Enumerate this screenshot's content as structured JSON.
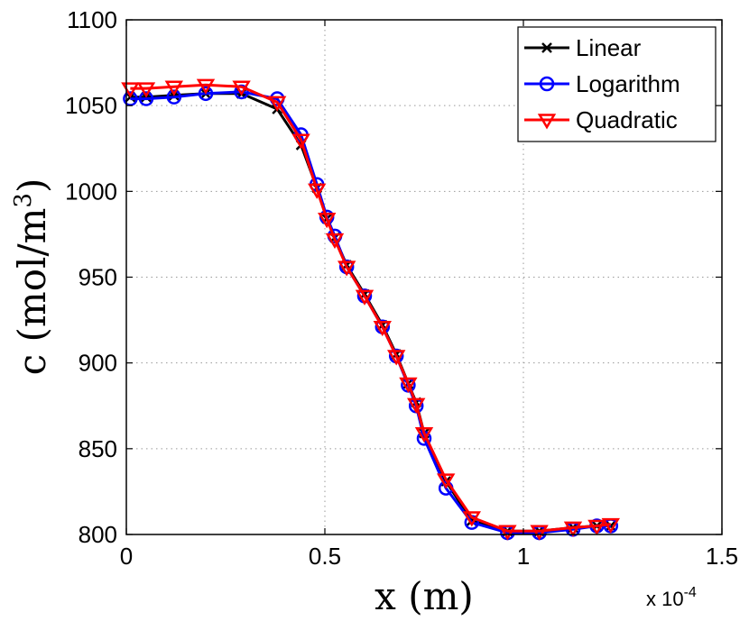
{
  "chart_data": {
    "type": "line",
    "title": "",
    "xlabel": "x (m)",
    "ylabel_prefix": "c (mol/m",
    "ylabel_sup": "3",
    "ylabel_suffix": ")",
    "x_exponent_label": "x 10",
    "x_exponent": "-4",
    "xlim": [
      0,
      1.5
    ],
    "ylim": [
      800,
      1100
    ],
    "x_scale_note": "x values in units of 1e-4 m",
    "xticks": [
      0,
      0.5,
      1,
      1.5
    ],
    "xtick_labels": [
      "0",
      "0.5",
      "1",
      "1.5"
    ],
    "yticks": [
      800,
      850,
      900,
      950,
      1000,
      1050,
      1100
    ],
    "ytick_labels": [
      "800",
      "850",
      "900",
      "950",
      "1000",
      "1050",
      "1100"
    ],
    "grid": true,
    "legend_position": "top-right",
    "series": [
      {
        "name": "Linear",
        "color": "#000000",
        "marker": "x",
        "x": [
          0.01,
          0.05,
          0.12,
          0.2,
          0.29,
          0.38,
          0.44,
          0.48,
          0.505,
          0.525,
          0.555,
          0.6,
          0.645,
          0.68,
          0.71,
          0.73,
          0.75,
          0.805,
          0.87,
          0.96,
          1.04,
          1.125,
          1.185,
          1.22
        ],
        "y": [
          1055,
          1055,
          1056,
          1057,
          1057,
          1048,
          1027,
          1002,
          984,
          973,
          957,
          940,
          922,
          905,
          888,
          877,
          859,
          831,
          808,
          802,
          802,
          804,
          805,
          805
        ]
      },
      {
        "name": "Logarithm",
        "color": "#0000ff",
        "marker": "o",
        "x": [
          0.01,
          0.05,
          0.12,
          0.2,
          0.29,
          0.38,
          0.44,
          0.48,
          0.505,
          0.525,
          0.555,
          0.6,
          0.645,
          0.68,
          0.71,
          0.73,
          0.75,
          0.805,
          0.87,
          0.96,
          1.04,
          1.125,
          1.185,
          1.22
        ],
        "y": [
          1054,
          1054,
          1055,
          1057,
          1058,
          1054,
          1033,
          1004,
          985,
          974,
          956,
          939,
          921,
          904,
          887,
          875,
          856,
          827,
          807,
          801,
          801,
          803,
          805,
          805
        ]
      },
      {
        "name": "Quadratic",
        "color": "#ff0000",
        "marker": "v",
        "x": [
          0.01,
          0.05,
          0.12,
          0.2,
          0.29,
          0.38,
          0.44,
          0.48,
          0.505,
          0.525,
          0.555,
          0.6,
          0.645,
          0.68,
          0.71,
          0.73,
          0.75,
          0.805,
          0.87,
          0.96,
          1.04,
          1.125,
          1.185,
          1.22
        ],
        "y": [
          1060,
          1060,
          1061,
          1062,
          1061,
          1052,
          1030,
          1001,
          984,
          972,
          956,
          939,
          921,
          904,
          888,
          876,
          859,
          832,
          810,
          802,
          802,
          804,
          805,
          806
        ]
      }
    ]
  }
}
